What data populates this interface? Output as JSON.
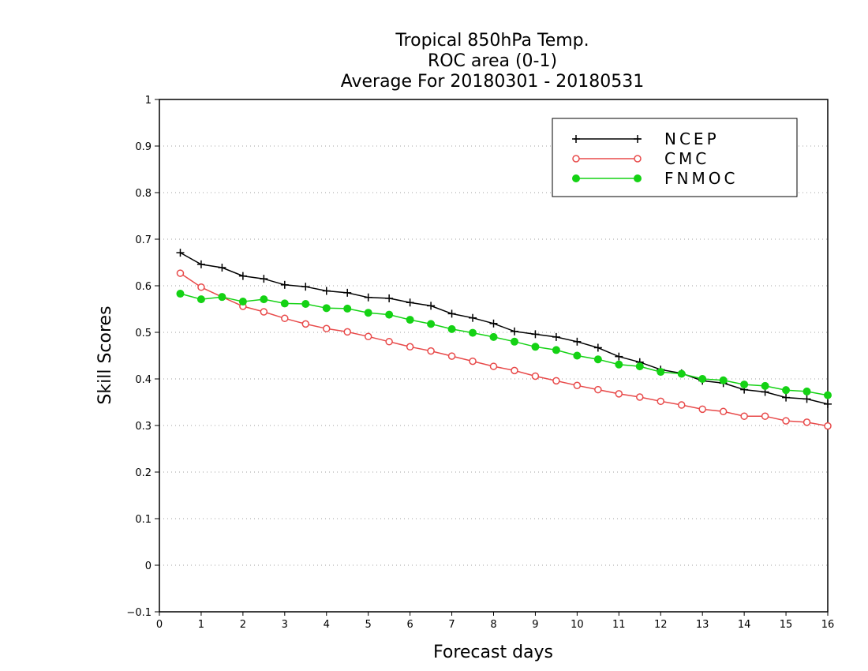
{
  "chart_data": {
    "type": "line",
    "title": [
      "Tropical 850hPa Temp.",
      "ROC area (0-1)",
      "Average For 20180301 - 20180531"
    ],
    "xlabel": "Forecast days",
    "ylabel": "Skill Scores",
    "xlim": [
      0,
      16
    ],
    "ylim": [
      -0.1,
      1
    ],
    "xticks": [
      "0",
      "1",
      "2",
      "3",
      "4",
      "5",
      "6",
      "7",
      "8",
      "9",
      "10",
      "11",
      "12",
      "13",
      "14",
      "15",
      "16"
    ],
    "yticks": [
      "−0.1",
      "0",
      "0.1",
      "0.2",
      "0.3",
      "0.4",
      "0.5",
      "0.6",
      "0.7",
      "0.8",
      "0.9",
      "1"
    ],
    "grid": "horizontal-dotted",
    "legend_position": "top-right",
    "x": [
      0.5,
      1,
      1.5,
      2,
      2.5,
      3,
      3.5,
      4,
      4.5,
      5,
      5.5,
      6,
      6.5,
      7,
      7.5,
      8,
      8.5,
      9,
      9.5,
      10,
      10.5,
      11,
      11.5,
      12,
      12.5,
      13,
      13.5,
      14,
      14.5,
      15,
      15.5,
      16
    ],
    "series": [
      {
        "name": "NCEP",
        "color": "#000000",
        "marker": "plus",
        "values": [
          0.671,
          0.646,
          0.639,
          0.621,
          0.615,
          0.602,
          0.598,
          0.589,
          0.585,
          0.575,
          0.573,
          0.564,
          0.557,
          0.54,
          0.531,
          0.519,
          0.502,
          0.496,
          0.49,
          0.48,
          0.467,
          0.448,
          0.436,
          0.42,
          0.412,
          0.396,
          0.391,
          0.377,
          0.372,
          0.36,
          0.357,
          0.346
        ]
      },
      {
        "name": "CMC",
        "color": "#e84a4a",
        "marker": "open-circle",
        "values": [
          0.627,
          0.597,
          0.576,
          0.556,
          0.544,
          0.53,
          0.518,
          0.508,
          0.501,
          0.491,
          0.48,
          0.469,
          0.46,
          0.449,
          0.438,
          0.427,
          0.418,
          0.406,
          0.396,
          0.386,
          0.377,
          0.368,
          0.361,
          0.352,
          0.344,
          0.335,
          0.33,
          0.32,
          0.32,
          0.31,
          0.307,
          0.299
        ]
      },
      {
        "name": "FNMOC",
        "color": "#14d214",
        "marker": "filled-circle",
        "values": [
          0.583,
          0.571,
          0.576,
          0.566,
          0.571,
          0.562,
          0.561,
          0.552,
          0.551,
          0.542,
          0.538,
          0.527,
          0.518,
          0.507,
          0.499,
          0.49,
          0.48,
          0.469,
          0.462,
          0.45,
          0.442,
          0.431,
          0.427,
          0.415,
          0.411,
          0.4,
          0.397,
          0.388,
          0.385,
          0.376,
          0.373,
          0.365
        ]
      }
    ]
  }
}
